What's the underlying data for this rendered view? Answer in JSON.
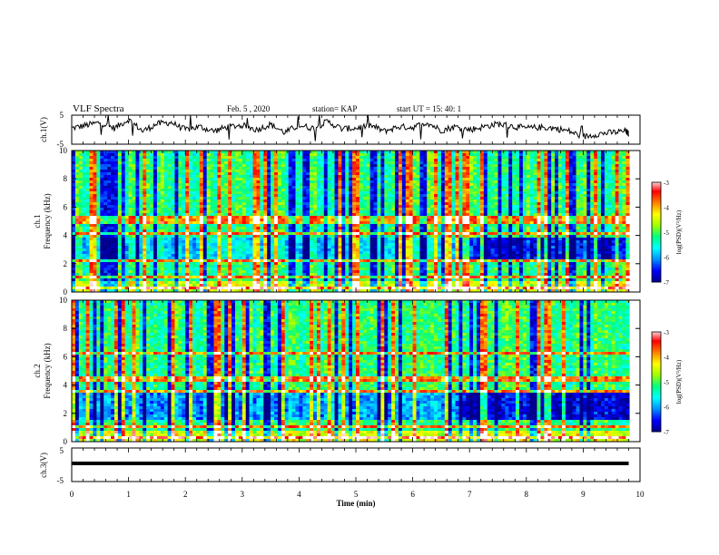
{
  "header": {
    "title": "VLF Spectra",
    "date": "Feb. 5 , 2020",
    "station": "station= KAP",
    "start": "start  UT =   15: 40: 1"
  },
  "chart_data": [
    {
      "type": "line",
      "name": "top-waveform",
      "ylabel": "ch.1(V)",
      "ylim": [
        -5,
        5
      ],
      "yticks": [
        "5",
        "-5"
      ],
      "xlim": [
        0,
        10
      ],
      "x": [
        0,
        0.25,
        0.5,
        0.75,
        1,
        1.25,
        1.5,
        1.75,
        2,
        2.25,
        2.5,
        2.75,
        3,
        3.25,
        3.5,
        3.75,
        4,
        4.25,
        4.5,
        4.75,
        5,
        5.25,
        5.5,
        5.75,
        6,
        6.25,
        6.5,
        6.75,
        7,
        7.25,
        7.5,
        7.75,
        8,
        8.25,
        8.5,
        8.75,
        9,
        9.25,
        9.5,
        9.75,
        9.8
      ],
      "y": [
        0.5,
        1.5,
        2.5,
        0.5,
        3.5,
        -0.5,
        2.0,
        2.5,
        0.0,
        1.0,
        -0.5,
        1.0,
        1.5,
        0.0,
        1.8,
        -1.0,
        1.5,
        0.5,
        2.8,
        0.3,
        0.5,
        1.5,
        -0.5,
        1.0,
        0.8,
        2.5,
        -0.2,
        1.0,
        0.0,
        1.0,
        2.0,
        1.2,
        0.5,
        0.8,
        0.5,
        -0.5,
        -2.5,
        -1.5,
        -1.0,
        -0.5,
        -1.5
      ]
    },
    {
      "type": "heatmap",
      "name": "ch1-spectrogram",
      "ylabel_line1": "ch.1",
      "ylabel_line2": "Frequency (kHz)",
      "ylim": [
        0,
        10
      ],
      "yticks": [
        "0",
        "2",
        "4",
        "6",
        "8",
        "10"
      ],
      "xlim": [
        0,
        10
      ],
      "colorbar": {
        "label": "log(PSD)(V²/Hz)",
        "range": [
          -7,
          -3
        ],
        "ticks": [
          "-3",
          "-4",
          "-5",
          "-6",
          "-7"
        ]
      },
      "bands_khz": [
        {
          "f": 5.0,
          "level": -3.6
        },
        {
          "f": 5.3,
          "level": -4.0
        },
        {
          "f": 4.1,
          "level": -4.2
        },
        {
          "f": 2.2,
          "level": -4.0
        },
        {
          "f": 1.1,
          "level": -3.8
        },
        {
          "f": 0.3,
          "level": -3.5
        }
      ]
    },
    {
      "type": "heatmap",
      "name": "ch2-spectrogram",
      "ylabel_line1": "ch.2",
      "ylabel_line2": "Frequency (kHz)",
      "ylim": [
        0,
        10
      ],
      "yticks": [
        "0",
        "2",
        "4",
        "6",
        "8",
        "10"
      ],
      "xlim": [
        0,
        10
      ],
      "colorbar": {
        "label": "log(PSD)(V²/Hz)",
        "range": [
          -7,
          -3
        ],
        "ticks": [
          "-3",
          "-4",
          "-5",
          "-6",
          "-7"
        ]
      },
      "bands_khz": [
        {
          "f": 3.6,
          "level": -3.5
        },
        {
          "f": 4.4,
          "level": -4.0
        },
        {
          "f": 6.2,
          "level": -4.2
        },
        {
          "f": 1.0,
          "level": -3.8
        },
        {
          "f": 0.3,
          "level": -3.5
        }
      ]
    },
    {
      "type": "line",
      "name": "bottom-waveform",
      "ylabel": "ch.3(V)",
      "ylim": [
        -5,
        5
      ],
      "yticks": [
        "5",
        "-5"
      ],
      "xlim": [
        0,
        10
      ],
      "x": [
        0,
        9.8
      ],
      "y": [
        0,
        0
      ],
      "xlabel": "Time (min)",
      "xticks": [
        "0",
        "1",
        "2",
        "3",
        "4",
        "5",
        "6",
        "7",
        "8",
        "9",
        "10"
      ]
    }
  ],
  "colors": {
    "line": "#000000",
    "colormap": [
      "#00008c",
      "#0000ff",
      "#0090ff",
      "#00ffff",
      "#00ff80",
      "#a0ff00",
      "#ffff00",
      "#ff8000",
      "#ff0000",
      "#ffffff"
    ]
  }
}
